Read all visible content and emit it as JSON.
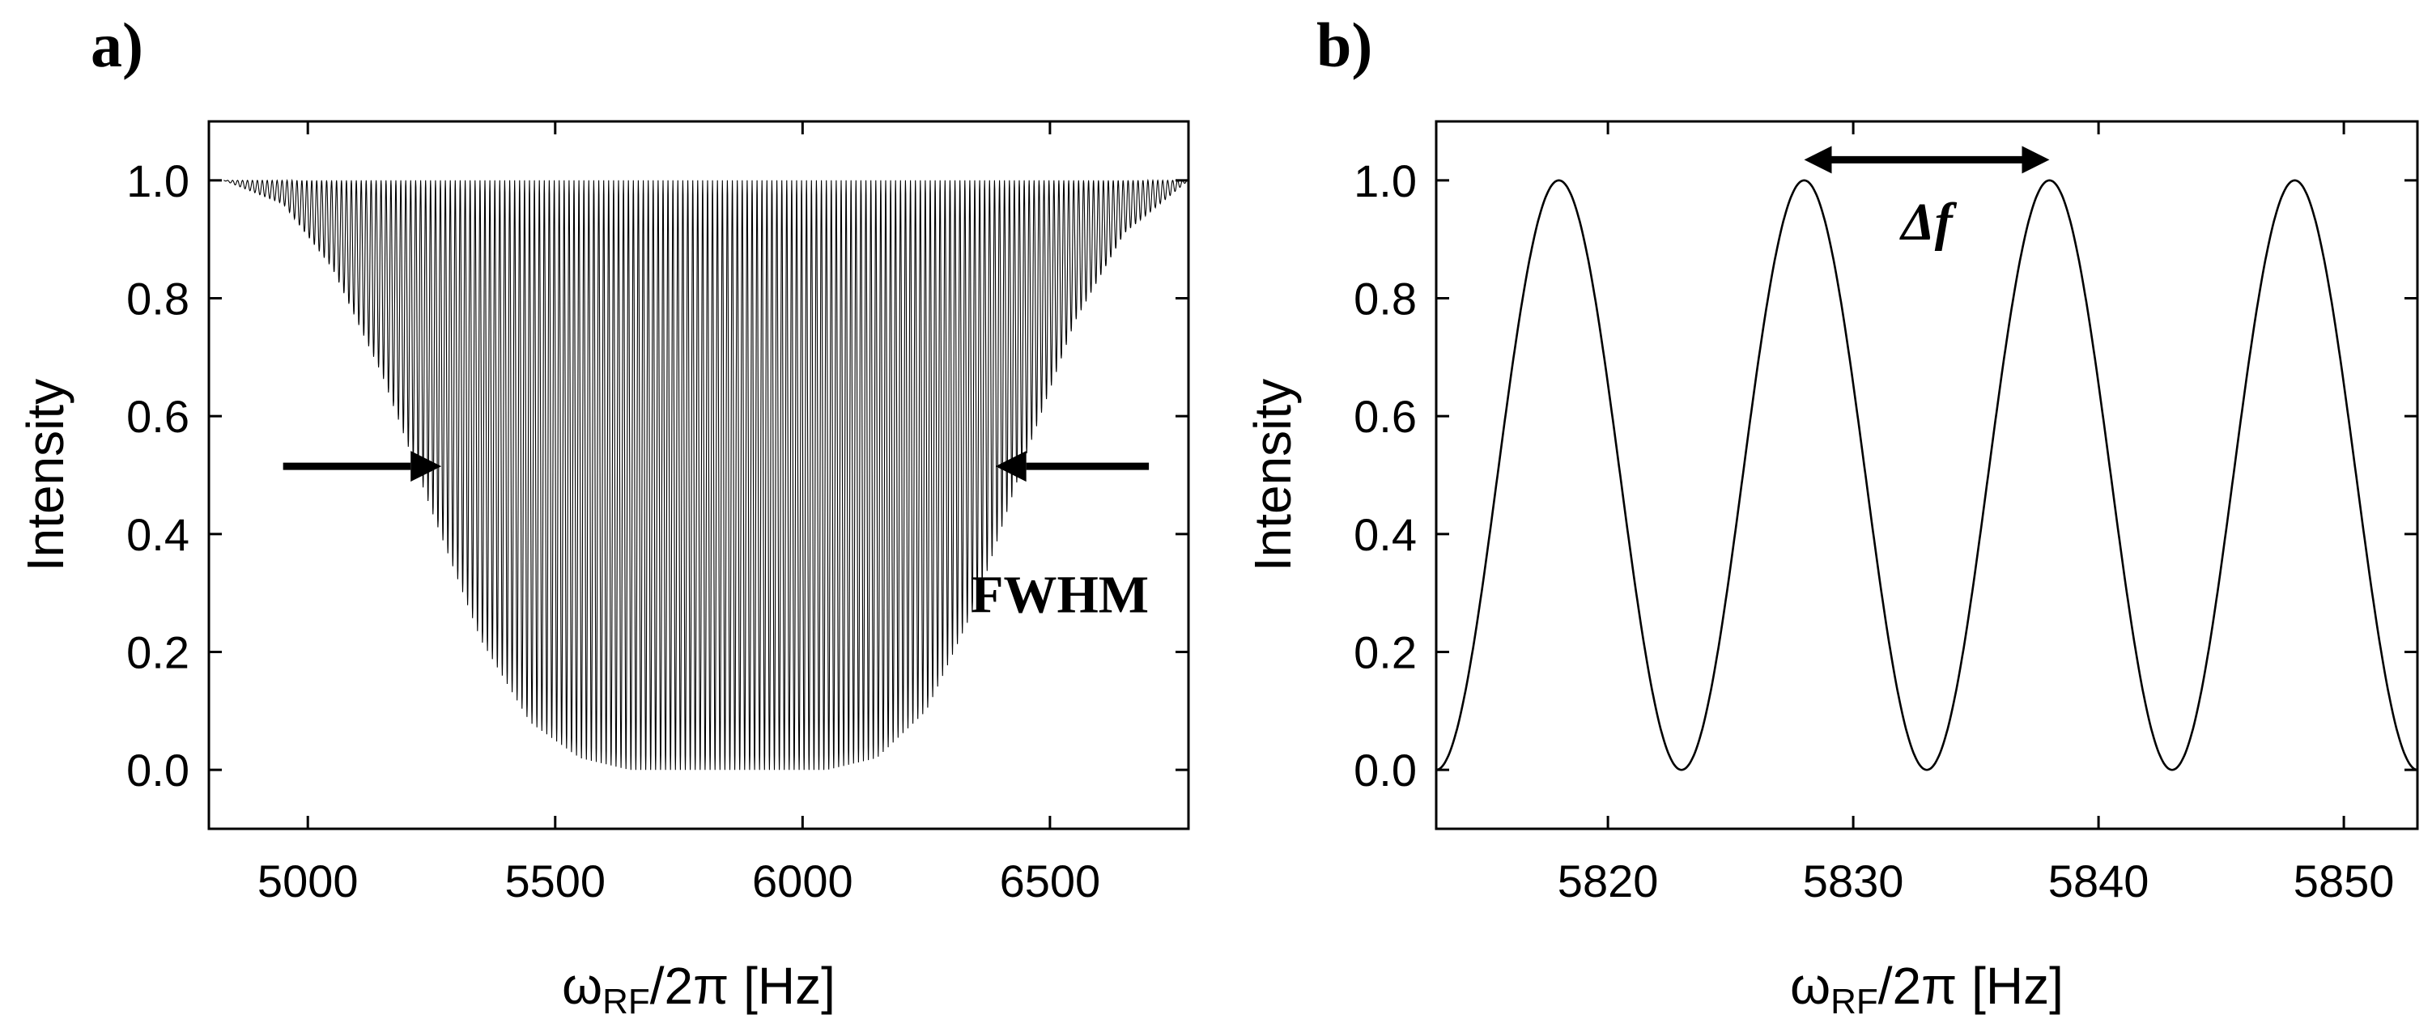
{
  "chart_data": [
    {
      "type": "line",
      "panel_label": "a)",
      "title": "",
      "xlabel_main": "ω",
      "xlabel_sub": "RF",
      "xlabel_tail": "/2π  [Hz]",
      "ylabel": "Intensity",
      "xlim": [
        4800,
        6780
      ],
      "ylim": [
        -0.1,
        1.1
      ],
      "xticks": [
        5000,
        5500,
        6000,
        6500
      ],
      "yticks": [
        0.0,
        0.2,
        0.4,
        0.6,
        0.8,
        1.0
      ],
      "ytick_labels": [
        "0.0",
        "0.2",
        "0.4",
        "0.6",
        "0.8",
        "1.0"
      ],
      "grid": false,
      "series": [
        {
          "name": "intensity",
          "model": "1 - A(f)·sin²(π(f - 5818)/10)",
          "fringe_spacing_hz": 10,
          "envelope_x": [
            4830,
            4950,
            5050,
            5150,
            5250,
            5350,
            5450,
            5550,
            5650,
            5750,
            5850,
            5950,
            6050,
            6150,
            6250,
            6350,
            6450,
            6550,
            6650,
            6780
          ],
          "envelope_depth": [
            0.0,
            0.04,
            0.15,
            0.33,
            0.56,
            0.78,
            0.92,
            0.98,
            1.0,
            1.0,
            1.0,
            1.0,
            1.0,
            0.98,
            0.9,
            0.72,
            0.47,
            0.24,
            0.09,
            0.0
          ]
        }
      ],
      "annotations": [
        {
          "text": "FWHM",
          "x": 6520,
          "y": 0.3
        },
        {
          "type": "arrow",
          "from": [
            4950,
            0.515
          ],
          "to": [
            5270,
            0.515
          ]
        },
        {
          "type": "arrow",
          "from": [
            6700,
            0.515
          ],
          "to": [
            6390,
            0.515
          ]
        }
      ]
    },
    {
      "type": "line",
      "panel_label": "b)",
      "title": "",
      "xlabel_main": "ω",
      "xlabel_sub": "RF",
      "xlabel_tail": "/2π  [Hz]",
      "ylabel": "Intensity",
      "xlim": [
        5813,
        5853
      ],
      "ylim": [
        -0.1,
        1.1
      ],
      "xticks": [
        5820,
        5830,
        5840,
        5850
      ],
      "yticks": [
        0.0,
        0.2,
        0.4,
        0.6,
        0.8,
        1.0
      ],
      "ytick_labels": [
        "0.0",
        "0.2",
        "0.4",
        "0.6",
        "0.8",
        "1.0"
      ],
      "grid": false,
      "series": [
        {
          "name": "intensity",
          "model": "cos²(π(f - 5818)/10)",
          "peaks_x": [
            5818,
            5828,
            5838,
            5848
          ],
          "peak_value": 1.0,
          "minima_x": [
            5813,
            5823,
            5833,
            5843,
            5853
          ],
          "min_value": 0.0
        }
      ],
      "annotations": [
        {
          "text": "Δf",
          "x": 5833,
          "y": 0.93
        },
        {
          "type": "double-arrow",
          "from": [
            5828,
            1.035
          ],
          "to": [
            5838,
            1.035
          ]
        }
      ]
    }
  ]
}
